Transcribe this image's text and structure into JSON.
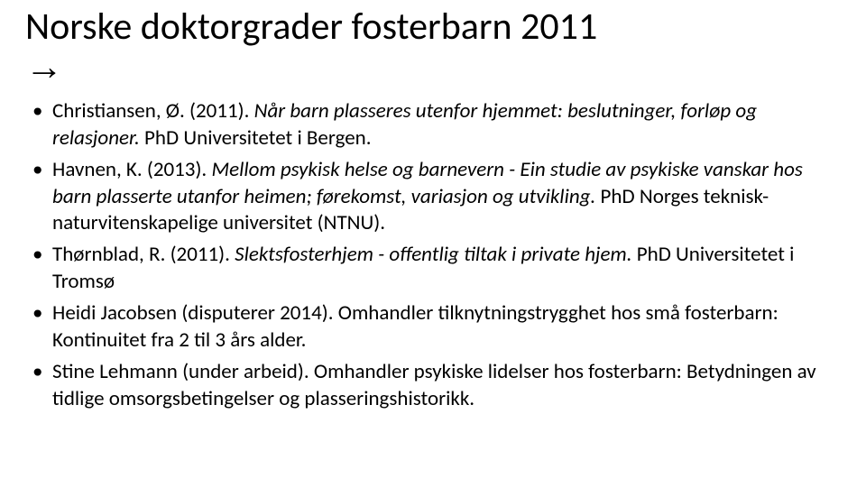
{
  "title_line1": "Norske doktorgrader fosterbarn 2011",
  "title_arrow": "→",
  "entries": [
    {
      "pre": "Christiansen, Ø. (2011). ",
      "ital": "Når barn plasseres utenfor hjemmet: beslutninger, forløp og relasjoner.",
      "post": " PhD Universitetet i Bergen."
    },
    {
      "pre": "Havnen, K. (2013). ",
      "ital": "Mellom psykisk helse og barnevern - Ein studie av psykiske vanskar hos barn plasserte utanfor heimen; førekomst, variasjon og utvikling.",
      "post": " PhD Norges teknisk-naturvitenskapelige universitet (NTNU)."
    },
    {
      "pre": "Thørnblad, R. (2011). ",
      "ital": "Slektsfosterhjem - offentlig tiltak i private hjem.",
      "post": " PhD Universitetet i Tromsø"
    },
    {
      "pre": "Heidi Jacobsen (disputerer 2014). Omhandler tilknytningstrygghet hos små fosterbarn: Kontinuitet fra 2 til 3 års alder.",
      "ital": "",
      "post": ""
    },
    {
      "pre": "Stine Lehmann (under arbeid). Omhandler psykiske lidelser hos fosterbarn: Betydningen av tidlige omsorgsbetingelser og plasseringshistorikk.",
      "ital": "",
      "post": ""
    }
  ]
}
